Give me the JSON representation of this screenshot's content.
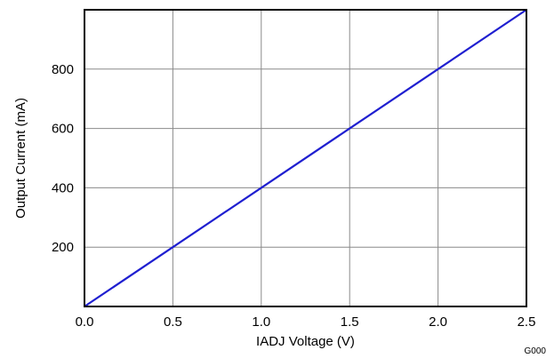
{
  "chart_data": {
    "type": "line",
    "title": "",
    "xlabel": "IADJ Voltage (V)",
    "ylabel": "Output Current (mA)",
    "xlim": [
      0,
      2.5
    ],
    "ylim": [
      0,
      1000
    ],
    "x_ticks": [
      0.0,
      0.5,
      1.0,
      1.5,
      2.0,
      2.5
    ],
    "x_tick_labels": [
      "0.0",
      "0.5",
      "1.0",
      "1.5",
      "2.0",
      "2.5"
    ],
    "y_ticks": [
      200,
      400,
      600,
      800
    ],
    "y_tick_labels": [
      "200",
      "400",
      "600",
      "800"
    ],
    "grid": true,
    "legend": "none",
    "series": [
      {
        "color": "#1f1fd0",
        "x": [
          0.0,
          0.5,
          1.0,
          1.5,
          2.0,
          2.5
        ],
        "y": [
          0,
          200,
          400,
          600,
          800,
          1000
        ]
      }
    ],
    "annotations": [
      "G000"
    ]
  }
}
